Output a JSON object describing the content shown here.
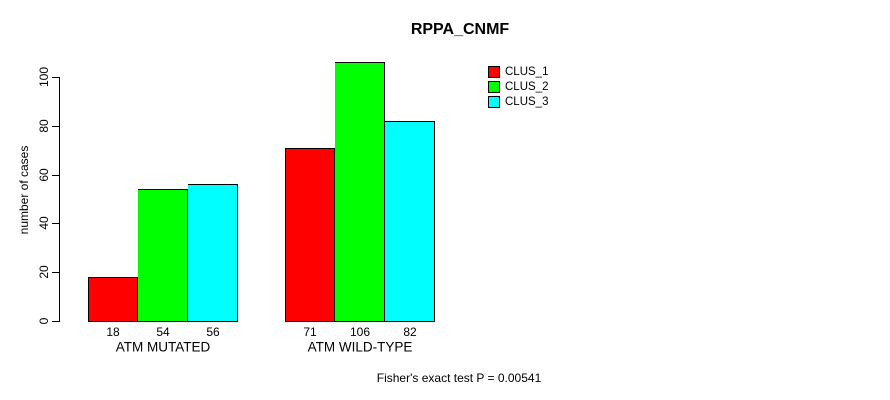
{
  "chart_data": {
    "type": "bar",
    "title": "RPPA_CNMF",
    "xlabel": "",
    "ylabel": "number of cases",
    "categories": [
      "ATM MUTATED",
      "ATM WILD-TYPE"
    ],
    "series": [
      {
        "name": "CLUS_1",
        "color": "#ff0000",
        "values": [
          18,
          71
        ]
      },
      {
        "name": "CLUS_2",
        "color": "#00ff00",
        "values": [
          54,
          106
        ]
      },
      {
        "name": "CLUS_3",
        "color": "#00ffff",
        "values": [
          56,
          82
        ]
      }
    ],
    "bar_value_labels_shown": true,
    "yticks": [
      0,
      20,
      40,
      60,
      80,
      100
    ],
    "ylim": [
      0,
      107.5
    ],
    "grid": false,
    "legend_position": "top-right",
    "annotation": "Fisher's exact test P = 0.00541"
  },
  "colors": {
    "axis": "#000000",
    "background": "#ffffff",
    "clus_1": "#ff0000",
    "clus_2": "#00ff00",
    "clus_3": "#00ffff"
  }
}
